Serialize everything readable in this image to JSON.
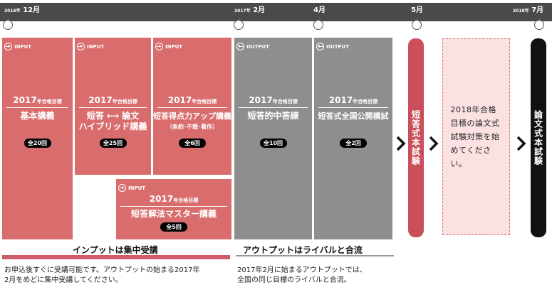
{
  "timeline": {
    "start": {
      "year": "2016年",
      "month": "12月"
    },
    "mid": {
      "year": "2017年",
      "month": "2月"
    },
    "apr": {
      "month": "4月"
    },
    "may": {
      "month": "5月"
    },
    "end": {
      "year": "2018年",
      "month": "7月"
    }
  },
  "input_label": "INPUT",
  "output_label": "OUTPUT",
  "target_year": "2017",
  "target_suffix": "年合格目標",
  "courses": [
    {
      "name": "基本講義",
      "sub": "",
      "count": "全20回"
    },
    {
      "name1": "短答",
      "name2": "論文",
      "name3": "ハイブリッド講義",
      "count": "全25回"
    },
    {
      "name": "短答得点力アップ講義",
      "sub": "（条約･不競･著作）",
      "count": "全6回"
    },
    {
      "name": "短答解法マスター講義",
      "count": "全5回"
    },
    {
      "name": "短答的中答練",
      "count": "全10回"
    },
    {
      "name": "短答式全国公開模試",
      "count": "全2回"
    }
  ],
  "exams": {
    "short": "短答式本試験",
    "essay": "論文式本試験"
  },
  "note": "2018年合格目標の論文式試験対策を始めてください。",
  "input_section": {
    "title": "インプットは集中受講",
    "desc": [
      "お申込後すぐに受講可能です。アウトプットの始まる2017年",
      "2月をめどに集中受講してください。"
    ]
  },
  "output_section": {
    "title": "アウトプットはライバルと合流",
    "desc": [
      "2017年2月に始まるアウトプットでは、",
      "全国の同じ目標のライバルと合流。"
    ]
  },
  "colors": {
    "input": "#d96d6d",
    "output": "#8e8e8e",
    "timeline": "#4a4a4a",
    "short_exam": "#c9505a",
    "essay_exam": "#111111"
  }
}
